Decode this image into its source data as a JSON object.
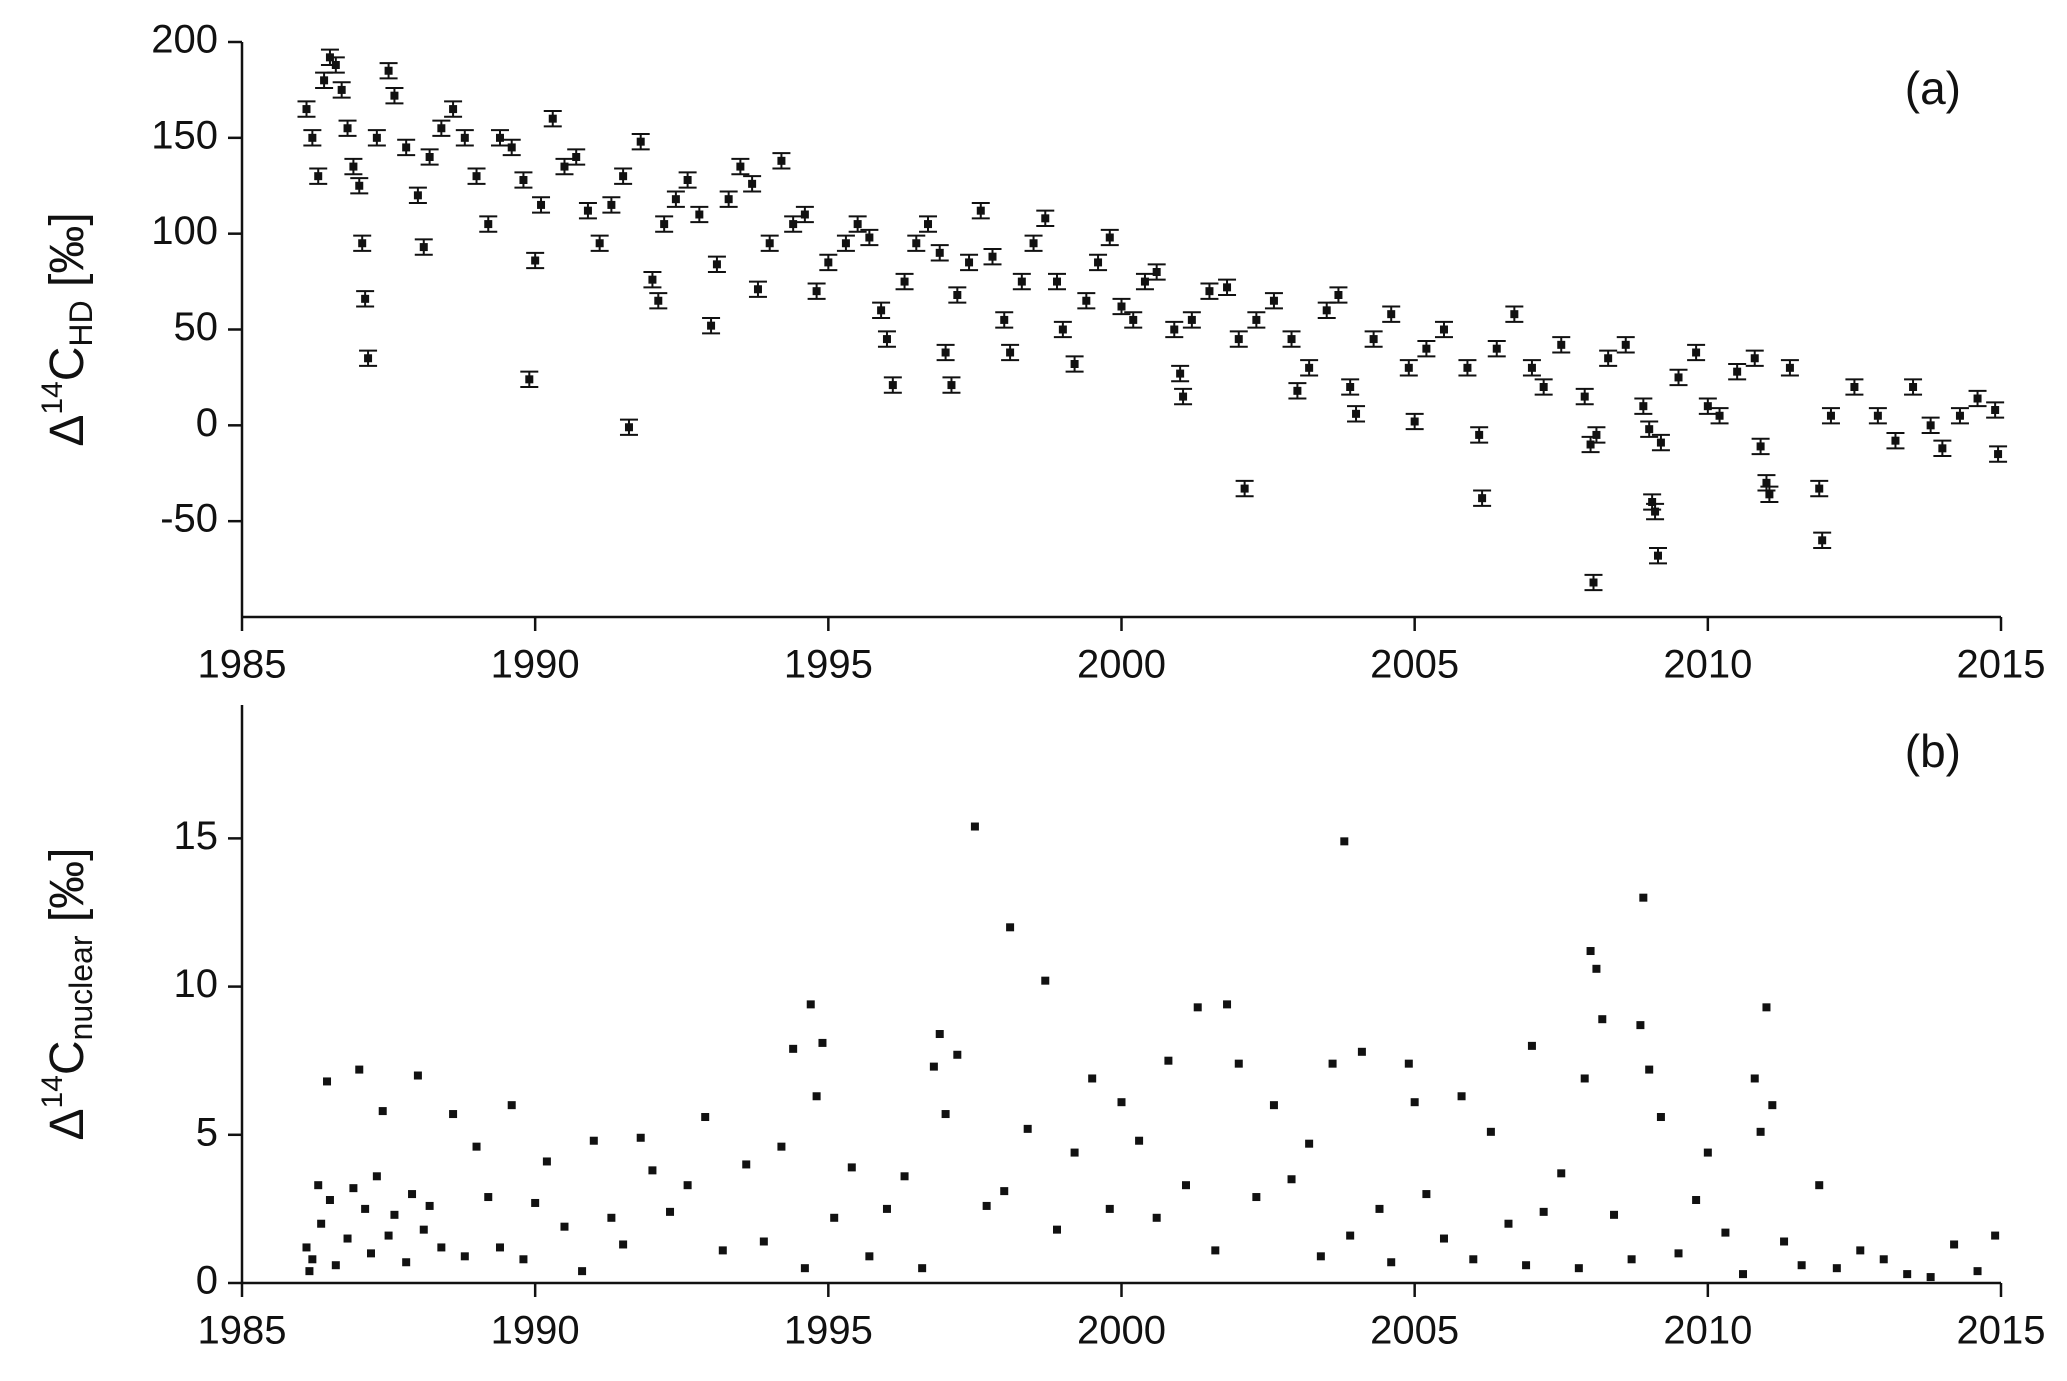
{
  "chart_data": [
    {
      "type": "scatter",
      "annotation": "(a)",
      "ylabel": {
        "prefix": "Δ",
        "sup": "14",
        "main": "C",
        "sub": "HD",
        "suffix": " [‰]"
      },
      "xlim": [
        1985,
        2015
      ],
      "xticks": [
        1985,
        1990,
        1995,
        2000,
        2005,
        2010,
        2015
      ],
      "ylim": [
        -100,
        200
      ],
      "yticks": [
        -50,
        0,
        50,
        100,
        150,
        200
      ],
      "color": "#111111",
      "error": 4,
      "x": [
        1986.1,
        1986.2,
        1986.3,
        1986.4,
        1986.5,
        1986.6,
        1986.7,
        1986.8,
        1986.9,
        1987.0,
        1987.05,
        1987.1,
        1987.15,
        1987.3,
        1987.5,
        1987.6,
        1987.8,
        1988.0,
        1988.1,
        1988.2,
        1988.4,
        1988.6,
        1988.8,
        1989.0,
        1989.2,
        1989.4,
        1989.6,
        1989.8,
        1989.9,
        1990.0,
        1990.1,
        1990.3,
        1990.5,
        1990.7,
        1990.9,
        1991.1,
        1991.3,
        1991.5,
        1991.6,
        1991.8,
        1992.0,
        1992.1,
        1992.2,
        1992.4,
        1992.6,
        1992.8,
        1993.0,
        1993.1,
        1993.3,
        1993.5,
        1993.7,
        1993.8,
        1994.0,
        1994.2,
        1994.4,
        1994.6,
        1994.8,
        1995.0,
        1995.3,
        1995.5,
        1995.7,
        1995.9,
        1996.0,
        1996.1,
        1996.3,
        1996.5,
        1996.7,
        1996.9,
        1997.0,
        1997.1,
        1997.2,
        1997.4,
        1997.6,
        1997.8,
        1998.0,
        1998.1,
        1998.3,
        1998.5,
        1998.7,
        1998.9,
        1999.0,
        1999.2,
        1999.4,
        1999.6,
        1999.8,
        2000.0,
        2000.2,
        2000.4,
        2000.6,
        2000.9,
        2001.0,
        2001.05,
        2001.2,
        2001.5,
        2001.8,
        2002.0,
        2002.1,
        2002.3,
        2002.6,
        2002.9,
        2003.0,
        2003.2,
        2003.5,
        2003.7,
        2003.9,
        2004.0,
        2004.3,
        2004.6,
        2004.9,
        2005.0,
        2005.2,
        2005.5,
        2005.9,
        2006.1,
        2006.15,
        2006.4,
        2006.7,
        2007.0,
        2007.2,
        2007.5,
        2007.9,
        2008.0,
        2008.05,
        2008.1,
        2008.3,
        2008.6,
        2008.9,
        2009.0,
        2009.05,
        2009.1,
        2009.15,
        2009.2,
        2009.5,
        2009.8,
        2010.0,
        2010.2,
        2010.5,
        2010.8,
        2010.9,
        2011.0,
        2011.05,
        2011.4,
        2011.9,
        2011.95,
        2012.1,
        2012.5,
        2012.9,
        2013.2,
        2013.5,
        2013.8,
        2014.0,
        2014.3,
        2014.6,
        2014.9,
        2014.95
      ],
      "values": [
        165,
        150,
        130,
        180,
        192,
        188,
        175,
        155,
        135,
        125,
        95,
        66,
        35,
        150,
        185,
        172,
        145,
        120,
        93,
        140,
        155,
        165,
        150,
        130,
        105,
        150,
        145,
        128,
        24,
        86,
        115,
        160,
        135,
        140,
        112,
        95,
        115,
        130,
        -1,
        148,
        76,
        65,
        105,
        118,
        128,
        110,
        52,
        84,
        118,
        135,
        126,
        71,
        95,
        138,
        105,
        110,
        70,
        85,
        95,
        105,
        98,
        60,
        45,
        21,
        75,
        95,
        105,
        90,
        38,
        21,
        68,
        85,
        112,
        88,
        55,
        38,
        75,
        95,
        108,
        75,
        50,
        32,
        65,
        85,
        98,
        62,
        55,
        75,
        80,
        50,
        27,
        15,
        55,
        70,
        72,
        45,
        -33,
        55,
        65,
        45,
        18,
        30,
        60,
        68,
        20,
        6,
        45,
        58,
        30,
        2,
        40,
        50,
        30,
        -5,
        -38,
        40,
        58,
        30,
        20,
        42,
        15,
        -10,
        -82,
        -5,
        35,
        42,
        10,
        -2,
        -40,
        -45,
        -68,
        -9,
        25,
        38,
        10,
        5,
        28,
        35,
        -11,
        -30,
        -36,
        30,
        -33,
        -60,
        5,
        20,
        5,
        -8,
        20,
        0,
        -12,
        5,
        14,
        8,
        -15
      ]
    },
    {
      "type": "scatter",
      "annotation": "(b)",
      "ylabel": {
        "prefix": "Δ",
        "sup": "14",
        "main": "C",
        "sub": "nuclear",
        "suffix": " [‰]"
      },
      "xlim": [
        1985,
        2015
      ],
      "xticks": [
        1985,
        1990,
        1995,
        2000,
        2005,
        2010,
        2015
      ],
      "ylim": [
        0,
        19.5
      ],
      "yticks": [
        0,
        5,
        10,
        15
      ],
      "color": "#111111",
      "x": [
        1986.1,
        1986.15,
        1986.2,
        1986.3,
        1986.35,
        1986.45,
        1986.5,
        1986.6,
        1986.8,
        1986.9,
        1987.0,
        1987.1,
        1987.2,
        1987.3,
        1987.4,
        1987.5,
        1987.6,
        1987.8,
        1987.9,
        1988.0,
        1988.1,
        1988.2,
        1988.4,
        1988.6,
        1988.8,
        1989.0,
        1989.2,
        1989.4,
        1989.6,
        1989.8,
        1990.0,
        1990.2,
        1990.5,
        1990.8,
        1991.0,
        1991.3,
        1991.5,
        1991.8,
        1992.0,
        1992.3,
        1992.6,
        1992.9,
        1993.2,
        1993.6,
        1993.9,
        1994.2,
        1994.4,
        1994.6,
        1994.7,
        1994.8,
        1994.9,
        1995.1,
        1995.4,
        1995.7,
        1996.0,
        1996.3,
        1996.6,
        1996.8,
        1996.9,
        1997.0,
        1997.2,
        1997.5,
        1997.7,
        1998.0,
        1998.1,
        1998.4,
        1998.7,
        1998.9,
        1999.2,
        1999.5,
        1999.8,
        2000.0,
        2000.3,
        2000.6,
        2000.8,
        2001.1,
        2001.3,
        2001.6,
        2001.8,
        2002.0,
        2002.3,
        2002.6,
        2002.9,
        2003.2,
        2003.4,
        2003.6,
        2003.8,
        2003.9,
        2004.1,
        2004.4,
        2004.6,
        2004.9,
        2005.0,
        2005.2,
        2005.5,
        2005.8,
        2006.0,
        2006.3,
        2006.6,
        2006.9,
        2007.0,
        2007.2,
        2007.5,
        2007.8,
        2007.9,
        2008.0,
        2008.1,
        2008.2,
        2008.4,
        2008.7,
        2008.85,
        2008.9,
        2009.0,
        2009.2,
        2009.5,
        2009.8,
        2010.0,
        2010.3,
        2010.6,
        2010.8,
        2010.9,
        2011.0,
        2011.1,
        2011.3,
        2011.6,
        2011.9,
        2012.2,
        2012.6,
        2013.0,
        2013.4,
        2013.8,
        2014.2,
        2014.6,
        2014.9
      ],
      "values": [
        1.2,
        0.4,
        0.8,
        3.3,
        2.0,
        6.8,
        2.8,
        0.6,
        1.5,
        3.2,
        7.2,
        2.5,
        1.0,
        3.6,
        5.8,
        1.6,
        2.3,
        0.7,
        3.0,
        7.0,
        1.8,
        2.6,
        1.2,
        5.7,
        0.9,
        4.6,
        2.9,
        1.2,
        6.0,
        0.8,
        2.7,
        4.1,
        1.9,
        0.4,
        4.8,
        2.2,
        1.3,
        4.9,
        3.8,
        2.4,
        3.3,
        5.6,
        1.1,
        4.0,
        1.4,
        4.6,
        7.9,
        0.5,
        9.4,
        6.3,
        8.1,
        2.2,
        3.9,
        0.9,
        2.5,
        3.6,
        0.5,
        7.3,
        8.4,
        5.7,
        7.7,
        15.4,
        2.6,
        3.1,
        12.0,
        5.2,
        10.2,
        1.8,
        4.4,
        6.9,
        2.5,
        6.1,
        4.8,
        2.2,
        7.5,
        3.3,
        9.3,
        1.1,
        9.4,
        7.4,
        2.9,
        6.0,
        3.5,
        4.7,
        0.9,
        7.4,
        14.9,
        1.6,
        7.8,
        2.5,
        0.7,
        7.4,
        6.1,
        3.0,
        1.5,
        6.3,
        0.8,
        5.1,
        2.0,
        0.6,
        8.0,
        2.4,
        3.7,
        0.5,
        6.9,
        11.2,
        10.6,
        8.9,
        2.3,
        0.8,
        8.7,
        13.0,
        7.2,
        5.6,
        1.0,
        2.8,
        4.4,
        1.7,
        0.3,
        6.9,
        5.1,
        9.3,
        6.0,
        1.4,
        0.6,
        3.3,
        0.5,
        1.1,
        0.8,
        0.3,
        0.2,
        1.3,
        0.4,
        1.6
      ]
    }
  ]
}
